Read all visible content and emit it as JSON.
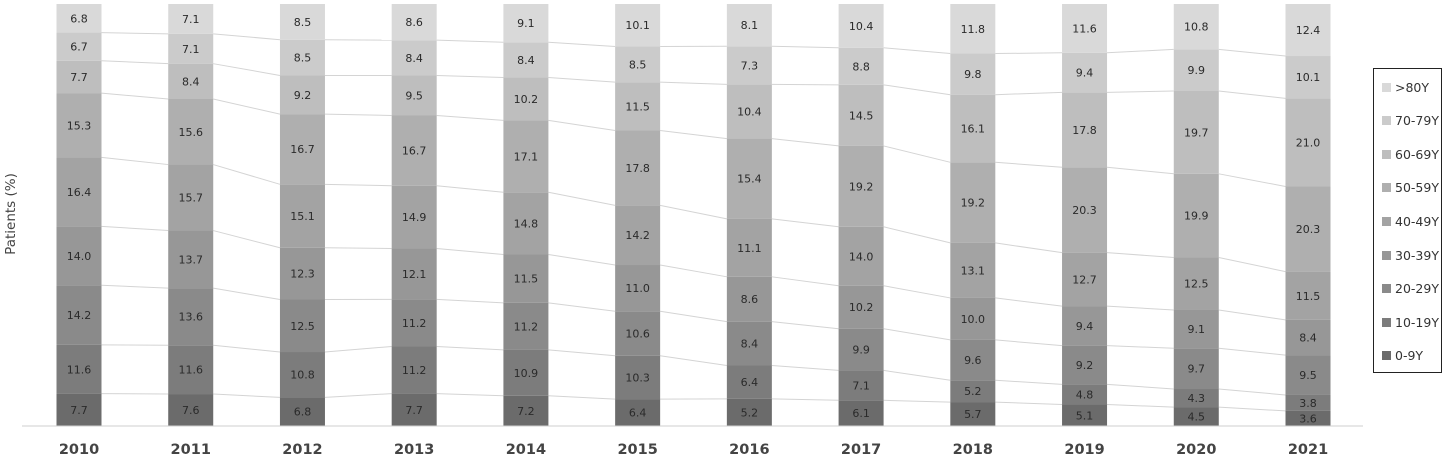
{
  "chart_data": {
    "type": "bar",
    "stacked": true,
    "normalized": true,
    "categories": [
      "2010",
      "2011",
      "2012",
      "2013",
      "2014",
      "2015",
      "2016",
      "2017",
      "2018",
      "2019",
      "2020",
      "2021"
    ],
    "ylabel": "Patients (%)",
    "xlabel": "",
    "title": "",
    "grid": false,
    "legend_position": "right",
    "connector_lines": true,
    "series": [
      {
        "name": "0-9Y",
        "color": "#6b6b6b",
        "values": [
          7.7,
          7.6,
          6.8,
          7.7,
          7.2,
          6.4,
          5.2,
          6.1,
          5.7,
          5.1,
          4.5,
          3.6
        ]
      },
      {
        "name": "10-19Y",
        "color": "#7c7c7c",
        "values": [
          11.6,
          11.6,
          10.8,
          11.2,
          10.9,
          10.3,
          6.4,
          7.1,
          5.2,
          4.8,
          4.3,
          3.8
        ]
      },
      {
        "name": "20-29Y",
        "color": "#8a8a8a",
        "values": [
          14.2,
          13.6,
          12.5,
          11.2,
          11.2,
          10.6,
          8.4,
          9.9,
          9.6,
          9.2,
          9.7,
          9.5
        ]
      },
      {
        "name": "30-39Y",
        "color": "#979797",
        "values": [
          14.0,
          13.7,
          12.3,
          12.1,
          11.5,
          11.0,
          8.6,
          10.2,
          10.0,
          9.4,
          9.1,
          8.4
        ]
      },
      {
        "name": "40-49Y",
        "color": "#a3a3a3",
        "values": [
          16.4,
          15.7,
          15.1,
          14.9,
          14.8,
          14.2,
          11.1,
          14.0,
          13.1,
          12.7,
          12.5,
          11.5
        ]
      },
      {
        "name": "50-59Y",
        "color": "#afafaf",
        "values": [
          15.3,
          15.6,
          16.7,
          16.7,
          17.1,
          17.8,
          15.4,
          19.2,
          19.2,
          20.3,
          19.9,
          20.3
        ]
      },
      {
        "name": "60-69Y",
        "color": "#bebebe",
        "values": [
          7.7,
          8.4,
          9.2,
          9.5,
          10.2,
          11.5,
          10.4,
          14.5,
          16.1,
          17.8,
          19.7,
          21.0
        ]
      },
      {
        "name": "70-79Y",
        "color": "#cbcbcb",
        "values": [
          6.7,
          7.1,
          8.5,
          8.4,
          8.4,
          8.5,
          7.3,
          8.8,
          9.8,
          9.4,
          9.9,
          10.1
        ]
      },
      {
        "name": ">80Y",
        "color": "#d9d9d9",
        "values": [
          6.8,
          7.1,
          8.5,
          8.6,
          9.1,
          10.1,
          8.1,
          10.4,
          11.8,
          11.6,
          10.8,
          12.4
        ]
      }
    ]
  }
}
